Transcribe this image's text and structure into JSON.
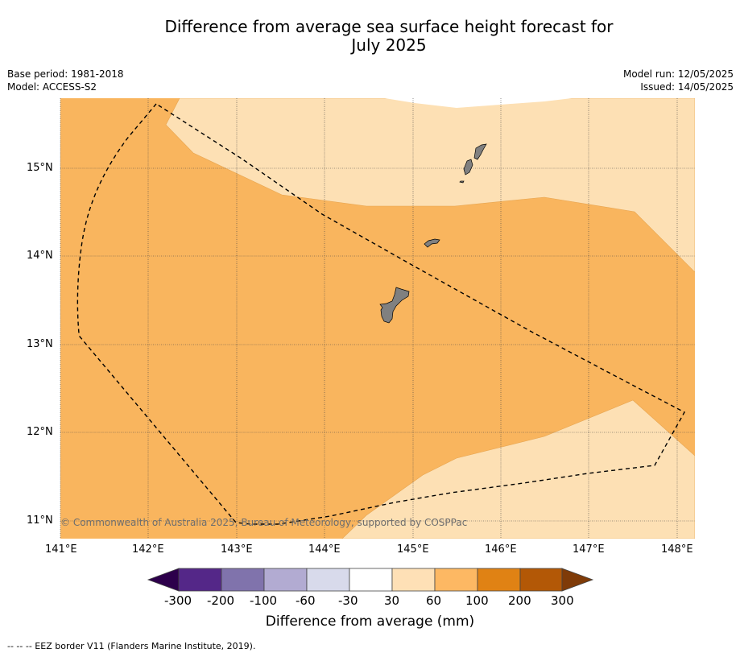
{
  "title": {
    "line1": "Difference from average sea surface height forecast for",
    "line2": "July 2025"
  },
  "meta_left": {
    "base_period": "Base period: 1981-2018",
    "model": "Model: ACCESS-S2"
  },
  "meta_right": {
    "model_run": "Model run: 12/05/2025",
    "issued": "Issued: 14/05/2025"
  },
  "map": {
    "lon_range": [
      141.0,
      148.2
    ],
    "lat_range": [
      10.8,
      15.8
    ],
    "lon_ticks": [
      "141°E",
      "142°E",
      "143°E",
      "144°E",
      "145°E",
      "146°E",
      "147°E",
      "148°E"
    ],
    "lat_ticks": [
      "15°N",
      "14°N",
      "13°N",
      "12°N",
      "11°N"
    ],
    "regions": [
      {
        "category": "30 to 60 mm",
        "color": "#fde0b4",
        "location": "northeast"
      },
      {
        "category": "60 to 100 mm",
        "color": "#f9b55e",
        "location": "central"
      },
      {
        "category": "30 to 60 mm",
        "color": "#fde0b4",
        "location": "southeast"
      }
    ],
    "land_color": "#808080",
    "islands": [
      "Guam",
      "Rota",
      "Tinian",
      "Saipan"
    ],
    "eez_line_style": "dashed",
    "gridlines": "dotted"
  },
  "copyright": "© Commonwealth of Australia 2025, Bureau of Meteorology, supported by COSPPac",
  "colorbar": {
    "title": "Difference from average (mm)",
    "labels": [
      "-300",
      "-200",
      "-100",
      "-60",
      "-30",
      "30",
      "60",
      "100",
      "200",
      "300"
    ],
    "colors": [
      "#2d004b",
      "#542788",
      "#8073ac",
      "#b2abd2",
      "#d8daeb",
      "#ffffff",
      "#fee0b6",
      "#fdb863",
      "#e08214",
      "#b35806",
      "#7f3b08"
    ]
  },
  "footnote": "--  --  -- EEZ border V11 (Flanders Marine Institute, 2019)."
}
